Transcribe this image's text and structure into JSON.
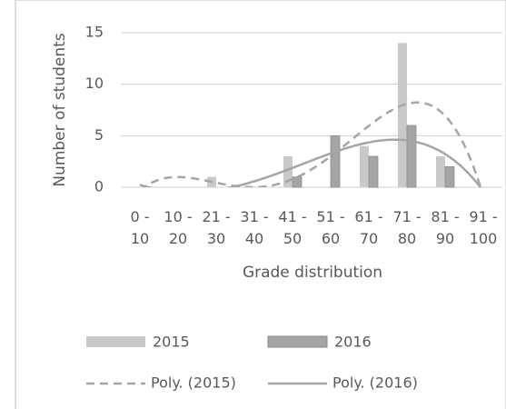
{
  "chart_data": {
    "type": "bar",
    "x_label": "Grade distribution",
    "y_label": "Number of students",
    "categories": [
      "0 - 10",
      "10 - 20",
      "21 - 30",
      "31 - 40",
      "41 - 50",
      "51 - 60",
      "61 - 70",
      "71 - 80",
      "81 - 90",
      "91 - 100"
    ],
    "series": [
      {
        "name": "2015",
        "color": "#c9c9c9",
        "values": [
          0,
          0,
          1,
          0,
          3,
          0,
          4,
          14,
          3,
          0
        ],
        "trendline_name": "Poly. (2015)",
        "trendline_style": "dashed"
      },
      {
        "name": "2016",
        "color": "#a5a5a5",
        "values": [
          0,
          0,
          0,
          0,
          1,
          5,
          3,
          6,
          2,
          0
        ],
        "trendline_name": "Poly. (2016)",
        "trendline_style": "solid"
      }
    ],
    "trendline_color": "#a5a5a5",
    "trendline_order": 4,
    "ylim": [
      0,
      15
    ],
    "yticks": [
      0,
      5,
      10,
      15
    ],
    "grid": true
  }
}
